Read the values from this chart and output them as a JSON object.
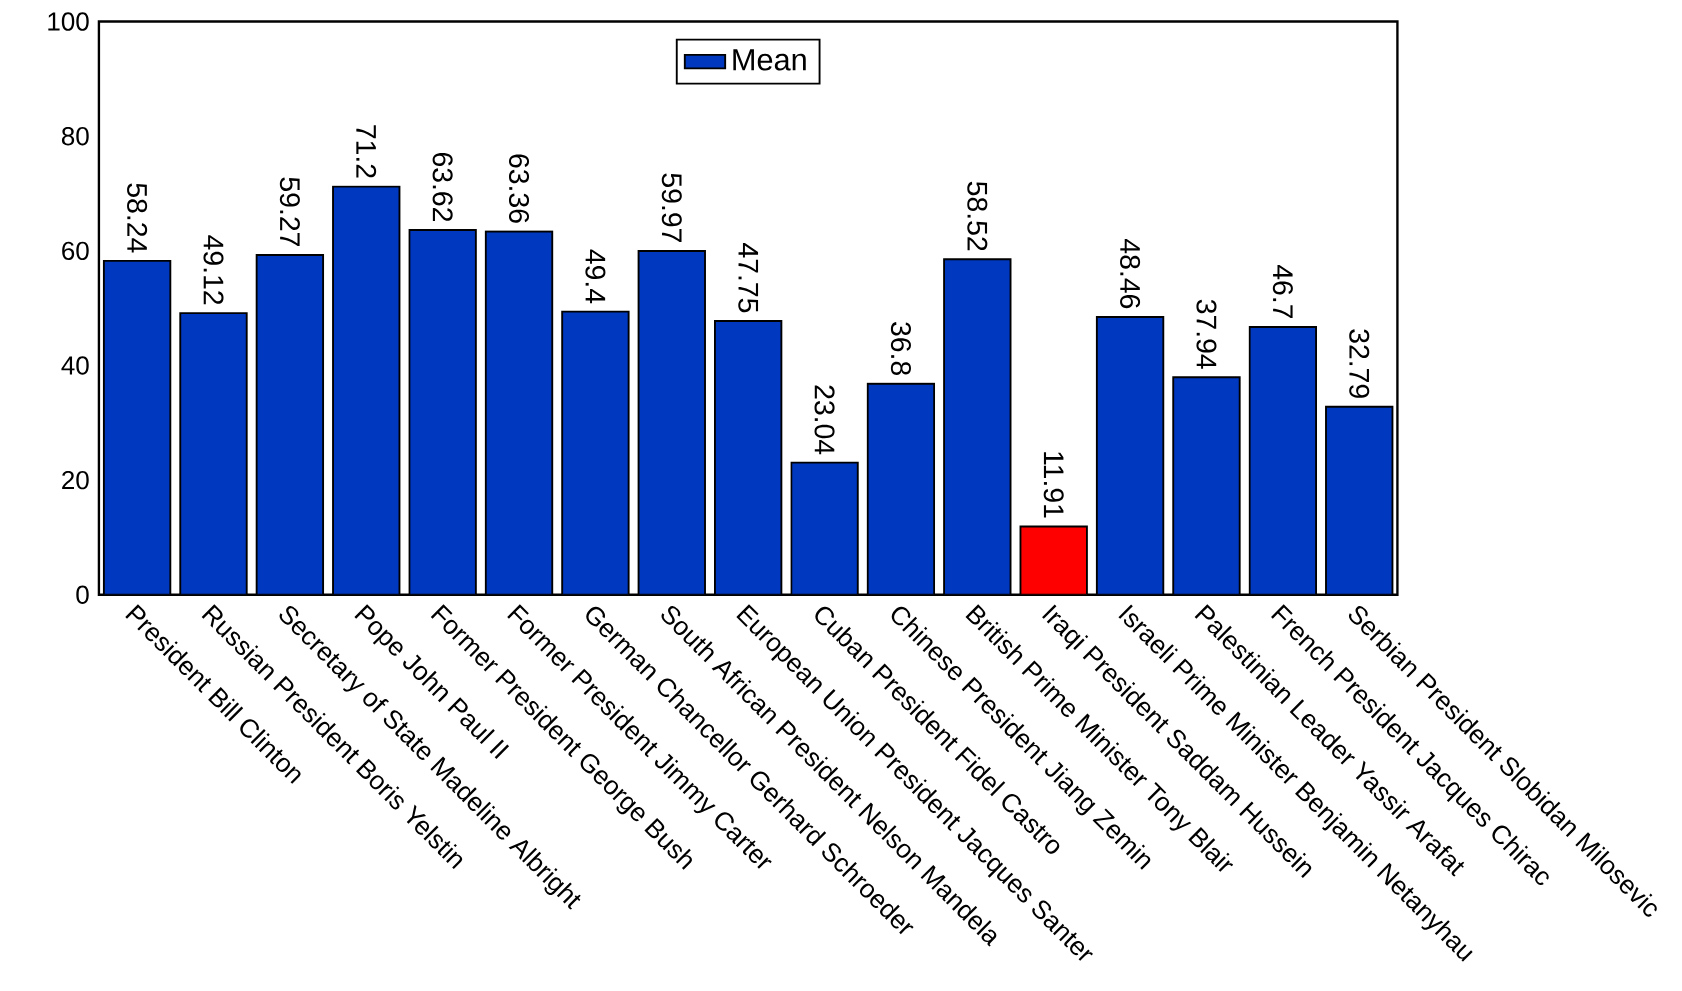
{
  "chart_data": {
    "type": "bar",
    "categories": [
      "President Bill Clinton",
      "Russian President Boris Yelstin",
      "Secretary of State Madeline Albright",
      "Pope John Paul II",
      "Former President George Bush",
      "Former President Jimmy Carter",
      "German Chancellor Gerhard Schroeder",
      "South African President Nelson Mandela",
      "European Union President Jacques Santer",
      "Cuban President Fidel Castro",
      "Chinese President Jiang Zemin",
      "British Prime Minister Tony Blair",
      "Iraqi President Saddam Hussein",
      "Israeli Prime Minister Benjamin Netanyhau",
      "Palestinian Leader Yassir Arafat",
      "French President Jacques Chirac",
      "Serbian President Slobidan Milosevic"
    ],
    "series": [
      {
        "name": "Mean",
        "colors": [
          "#0038c0",
          "#0038c0",
          "#0038c0",
          "#0038c0",
          "#0038c0",
          "#0038c0",
          "#0038c0",
          "#0038c0",
          "#0038c0",
          "#0038c0",
          "#0038c0",
          "#0038c0",
          "#ff0000",
          "#0038c0",
          "#0038c0",
          "#0038c0",
          "#0038c0"
        ],
        "values": [
          58.24,
          49.12,
          59.27,
          71.2,
          63.62,
          63.36,
          49.4,
          59.97,
          47.75,
          23.04,
          36.8,
          58.52,
          11.91,
          48.46,
          37.94,
          46.7,
          32.79
        ]
      }
    ],
    "ylim": [
      0,
      100
    ],
    "yticks": [
      0,
      20,
      40,
      60,
      80,
      100
    ],
    "data_labels": true,
    "legend": "top"
  }
}
